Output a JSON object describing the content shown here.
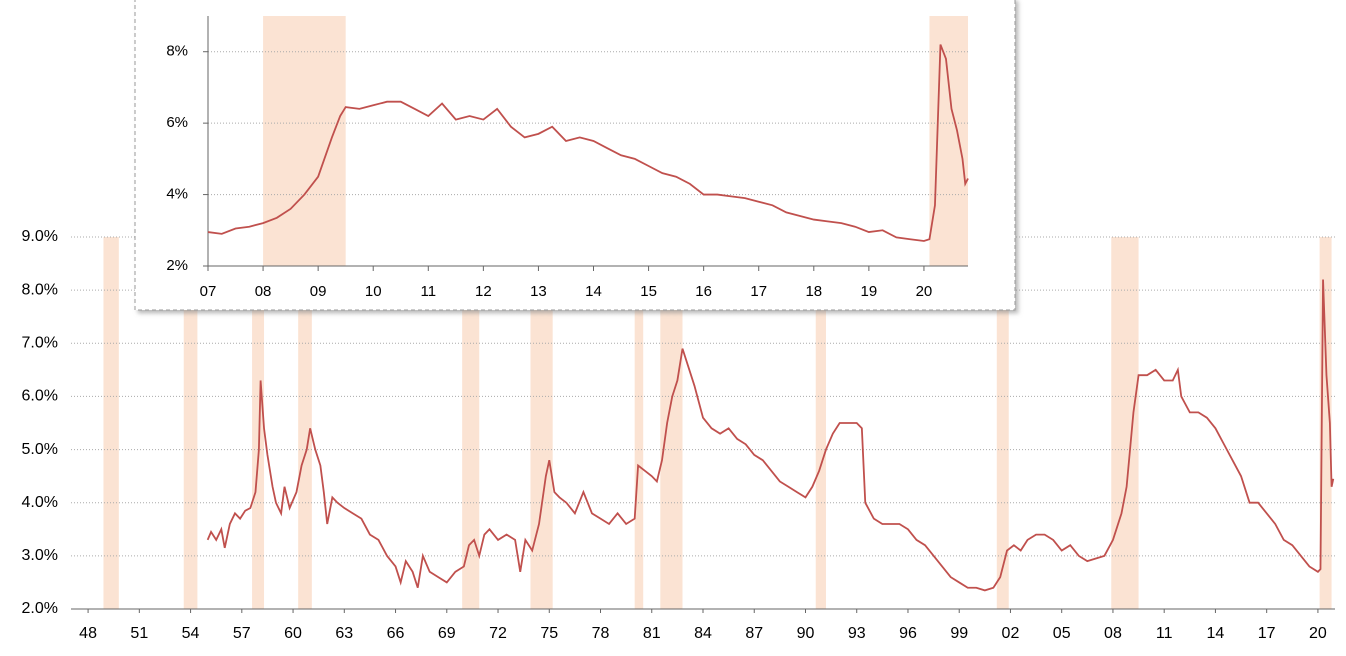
{
  "chart_data": [
    {
      "type": "line",
      "color": "#c0504d",
      "recession_color": "#fbe3d3",
      "grid": true,
      "xlim": [
        1947,
        2021
      ],
      "ylim": [
        2,
        9
      ],
      "yticks": [
        {
          "value": 2,
          "label": "2.0%"
        },
        {
          "value": 3,
          "label": "3.0%"
        },
        {
          "value": 4,
          "label": "4.0%"
        },
        {
          "value": 5,
          "label": "5.0%"
        },
        {
          "value": 6,
          "label": "6.0%"
        },
        {
          "value": 7,
          "label": "7.0%"
        },
        {
          "value": 8,
          "label": "8.0%"
        },
        {
          "value": 9,
          "label": "9.0%"
        }
      ],
      "xticks": [
        {
          "value": 1948,
          "label": "48"
        },
        {
          "value": 1951,
          "label": "51"
        },
        {
          "value": 1954,
          "label": "54"
        },
        {
          "value": 1957,
          "label": "57"
        },
        {
          "value": 1960,
          "label": "60"
        },
        {
          "value": 1963,
          "label": "63"
        },
        {
          "value": 1966,
          "label": "66"
        },
        {
          "value": 1969,
          "label": "69"
        },
        {
          "value": 1972,
          "label": "72"
        },
        {
          "value": 1975,
          "label": "75"
        },
        {
          "value": 1978,
          "label": "78"
        },
        {
          "value": 1981,
          "label": "81"
        },
        {
          "value": 1984,
          "label": "84"
        },
        {
          "value": 1987,
          "label": "87"
        },
        {
          "value": 1990,
          "label": "90"
        },
        {
          "value": 1993,
          "label": "93"
        },
        {
          "value": 1996,
          "label": "96"
        },
        {
          "value": 1999,
          "label": "99"
        },
        {
          "value": 2002,
          "label": "02"
        },
        {
          "value": 2005,
          "label": "05"
        },
        {
          "value": 2008,
          "label": "08"
        },
        {
          "value": 2011,
          "label": "11"
        },
        {
          "value": 2014,
          "label": "14"
        },
        {
          "value": 2017,
          "label": "17"
        },
        {
          "value": 2020,
          "label": "20"
        }
      ],
      "recessions": [
        [
          1948.9,
          1949.8
        ],
        [
          1953.6,
          1954.4
        ],
        [
          1957.6,
          1958.3
        ],
        [
          1960.3,
          1961.1
        ],
        [
          1969.9,
          1970.9
        ],
        [
          1973.9,
          1975.2
        ],
        [
          1980.0,
          1980.5
        ],
        [
          1981.5,
          1982.8
        ],
        [
          1990.6,
          1991.2
        ],
        [
          2001.2,
          2001.9
        ],
        [
          2007.9,
          2009.5
        ],
        [
          2020.1,
          2020.8
        ]
      ],
      "x": [
        1955.0,
        1955.2,
        1955.5,
        1955.8,
        1956.0,
        1956.3,
        1956.6,
        1956.9,
        1957.2,
        1957.5,
        1957.8,
        1958.0,
        1958.1,
        1958.3,
        1958.5,
        1958.8,
        1959.0,
        1959.3,
        1959.5,
        1959.8,
        1960.2,
        1960.5,
        1960.8,
        1961.0,
        1961.3,
        1961.6,
        1961.8,
        1962.0,
        1962.3,
        1962.6,
        1963.0,
        1963.5,
        1964.0,
        1964.5,
        1965.0,
        1965.5,
        1966.0,
        1966.3,
        1966.6,
        1967.0,
        1967.3,
        1967.6,
        1968.0,
        1968.5,
        1969.0,
        1969.5,
        1970.0,
        1970.3,
        1970.6,
        1970.9,
        1971.2,
        1971.5,
        1972.0,
        1972.5,
        1973.0,
        1973.3,
        1973.6,
        1974.0,
        1974.4,
        1974.8,
        1975.0,
        1975.3,
        1975.6,
        1976.0,
        1976.5,
        1977.0,
        1977.5,
        1978.0,
        1978.5,
        1979.0,
        1979.5,
        1980.0,
        1980.2,
        1980.6,
        1981.0,
        1981.3,
        1981.6,
        1981.9,
        1982.2,
        1982.5,
        1982.8,
        1983.1,
        1983.5,
        1984.0,
        1984.5,
        1985.0,
        1985.5,
        1986.0,
        1986.5,
        1987.0,
        1987.5,
        1988.0,
        1988.5,
        1989.0,
        1989.5,
        1990.0,
        1990.4,
        1990.8,
        1991.2,
        1991.6,
        1992.0,
        1992.5,
        1993.0,
        1993.3,
        1993.5,
        1994.0,
        1994.5,
        1995.0,
        1995.5,
        1996.0,
        1996.5,
        1997.0,
        1997.5,
        1998.0,
        1998.5,
        1999.0,
        1999.5,
        2000.0,
        2000.5,
        2001.0,
        2001.4,
        2001.8,
        2002.2,
        2002.6,
        2003.0,
        2003.5,
        2004.0,
        2004.5,
        2005.0,
        2005.5,
        2006.0,
        2006.5,
        2007.0,
        2007.5,
        2008.0,
        2008.5,
        2008.8,
        2009.0,
        2009.2,
        2009.5,
        2010.0,
        2010.5,
        2011.0,
        2011.5,
        2011.8,
        2012.0,
        2012.5,
        2013.0,
        2013.5,
        2014.0,
        2014.5,
        2015.0,
        2015.5,
        2016.0,
        2016.5,
        2017.0,
        2017.5,
        2018.0,
        2018.5,
        2019.0,
        2019.5,
        2020.0,
        2020.15,
        2020.3,
        2020.5,
        2020.7,
        2020.8,
        2020.9
      ],
      "values": [
        3.3,
        3.45,
        3.3,
        3.5,
        3.15,
        3.6,
        3.8,
        3.7,
        3.85,
        3.9,
        4.2,
        5.0,
        6.3,
        5.4,
        4.9,
        4.3,
        4.0,
        3.8,
        4.3,
        3.9,
        4.2,
        4.7,
        5.0,
        5.4,
        5.0,
        4.7,
        4.2,
        3.6,
        4.1,
        4.0,
        3.9,
        3.8,
        3.7,
        3.4,
        3.3,
        3.0,
        2.8,
        2.5,
        2.9,
        2.7,
        2.4,
        3.0,
        2.7,
        2.6,
        2.5,
        2.7,
        2.8,
        3.2,
        3.3,
        3.0,
        3.4,
        3.5,
        3.3,
        3.4,
        3.3,
        2.7,
        3.3,
        3.1,
        3.6,
        4.5,
        4.8,
        4.2,
        4.1,
        4.0,
        3.8,
        4.2,
        3.8,
        3.7,
        3.6,
        3.8,
        3.6,
        3.7,
        4.7,
        4.6,
        4.5,
        4.4,
        4.8,
        5.5,
        6.0,
        6.3,
        6.9,
        6.6,
        6.2,
        5.6,
        5.4,
        5.3,
        5.4,
        5.2,
        5.1,
        4.9,
        4.8,
        4.6,
        4.4,
        4.3,
        4.2,
        4.1,
        4.3,
        4.6,
        5.0,
        5.3,
        5.5,
        5.5,
        5.5,
        5.4,
        4.0,
        3.7,
        3.6,
        3.6,
        3.6,
        3.5,
        3.3,
        3.2,
        3.0,
        2.8,
        2.6,
        2.5,
        2.4,
        2.4,
        2.35,
        2.4,
        2.6,
        3.1,
        3.2,
        3.1,
        3.3,
        3.4,
        3.4,
        3.3,
        3.1,
        3.2,
        3.0,
        2.9,
        2.95,
        3.0,
        3.3,
        3.8,
        4.3,
        5.0,
        5.7,
        6.4,
        6.4,
        6.5,
        6.3,
        6.3,
        6.5,
        6.0,
        5.7,
        5.7,
        5.6,
        5.4,
        5.1,
        4.8,
        4.5,
        4.0,
        4.0,
        3.8,
        3.6,
        3.3,
        3.2,
        3.0,
        2.8,
        2.7,
        2.75,
        8.2,
        6.4,
        5.5,
        4.3,
        4.45
      ]
    },
    {
      "type": "line",
      "color": "#c0504d",
      "recession_color": "#fbe3d3",
      "grid": true,
      "xlim": [
        2007,
        2020.8
      ],
      "ylim": [
        2,
        9
      ],
      "yticks": [
        {
          "value": 2,
          "label": "2%"
        },
        {
          "value": 4,
          "label": "4%"
        },
        {
          "value": 6,
          "label": "6%"
        },
        {
          "value": 8,
          "label": "8%"
        }
      ],
      "xticks": [
        {
          "value": 2007,
          "label": "07"
        },
        {
          "value": 2008,
          "label": "08"
        },
        {
          "value": 2009,
          "label": "09"
        },
        2010,
        2011,
        2012,
        2013,
        2014,
        2015,
        2016,
        {
          "value": 2017,
          "label": "17"
        },
        {
          "value": 2018,
          "label": "18"
        },
        {
          "value": 2019,
          "label": "19"
        },
        {
          "value": 2020,
          "label": "20"
        }
      ],
      "recessions": [
        [
          2008.0,
          2009.5
        ],
        [
          2020.1,
          2020.8
        ]
      ],
      "x": [
        2007.0,
        2007.25,
        2007.5,
        2007.75,
        2008.0,
        2008.25,
        2008.5,
        2008.75,
        2009.0,
        2009.25,
        2009.4,
        2009.5,
        2009.75,
        2010.0,
        2010.25,
        2010.5,
        2010.75,
        2011.0,
        2011.25,
        2011.5,
        2011.75,
        2012.0,
        2012.25,
        2012.5,
        2012.75,
        2013.0,
        2013.25,
        2013.5,
        2013.75,
        2014.0,
        2014.25,
        2014.5,
        2014.75,
        2015.0,
        2015.25,
        2015.5,
        2015.75,
        2016.0,
        2016.25,
        2016.5,
        2016.75,
        2017.0,
        2017.25,
        2017.5,
        2017.75,
        2018.0,
        2018.25,
        2018.5,
        2018.75,
        2019.0,
        2019.25,
        2019.5,
        2019.75,
        2020.0,
        2020.1,
        2020.2,
        2020.3,
        2020.4,
        2020.5,
        2020.6,
        2020.7,
        2020.75,
        2020.8
      ],
      "values": [
        2.95,
        2.9,
        3.05,
        3.1,
        3.2,
        3.35,
        3.6,
        4.0,
        4.5,
        5.6,
        6.2,
        6.45,
        6.4,
        6.5,
        6.6,
        6.6,
        6.4,
        6.2,
        6.55,
        6.1,
        6.2,
        6.1,
        6.4,
        5.9,
        5.6,
        5.7,
        5.9,
        5.5,
        5.6,
        5.5,
        5.3,
        5.1,
        5.0,
        4.8,
        4.6,
        4.5,
        4.3,
        4.0,
        4.0,
        3.95,
        3.9,
        3.8,
        3.7,
        3.5,
        3.4,
        3.3,
        3.25,
        3.2,
        3.1,
        2.95,
        3.0,
        2.8,
        2.75,
        2.7,
        2.75,
        3.7,
        8.2,
        7.8,
        6.4,
        5.8,
        5.0,
        4.3,
        4.45
      ]
    }
  ]
}
